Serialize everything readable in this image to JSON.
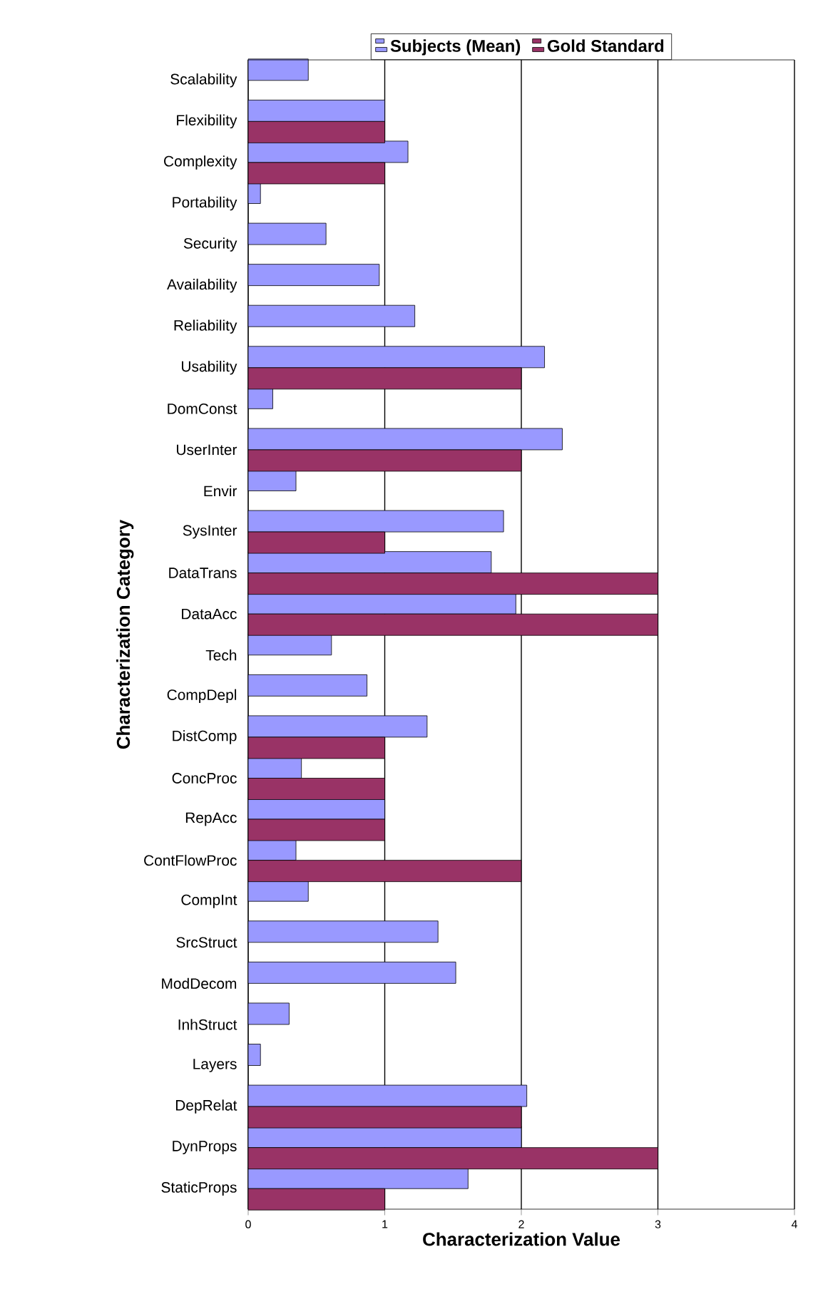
{
  "chart_data": {
    "type": "bar",
    "orientation": "horizontal",
    "xlabel": "Characterization Value",
    "ylabel": "Characterization Category",
    "categories": [
      "Scalability",
      "Flexibility",
      "Complexity",
      "Portability",
      "Security",
      "Availability",
      "Reliability",
      "Usability",
      "DomConst",
      "UserInter",
      "Envir",
      "SysInter",
      "DataTrans",
      "DataAcc",
      "Tech",
      "CompDepl",
      "DistComp",
      "ConcProc",
      "RepAcc",
      "ContFlowProc",
      "CompInt",
      "SrcStruct",
      "ModDecom",
      "InhStruct",
      "Layers",
      "DepRelat",
      "DynProps",
      "StaticProps"
    ],
    "series": [
      {
        "name": "Subjects (Mean)",
        "color": "#9999ff",
        "values": [
          0.44,
          1.0,
          1.17,
          0.09,
          0.57,
          0.96,
          1.22,
          2.17,
          0.18,
          2.3,
          0.35,
          1.87,
          1.78,
          1.96,
          0.61,
          0.87,
          1.31,
          0.39,
          1.0,
          0.35,
          0.44,
          1.39,
          1.52,
          0.3,
          0.09,
          2.04,
          2.0,
          1.61
        ]
      },
      {
        "name": "Gold Standard",
        "color": "#993366",
        "values": [
          null,
          1,
          1,
          null,
          null,
          null,
          null,
          2,
          null,
          2,
          null,
          1,
          3,
          3,
          null,
          null,
          1,
          1,
          1,
          2,
          null,
          null,
          null,
          null,
          null,
          2,
          3,
          1
        ]
      }
    ],
    "xlim": [
      0,
      4
    ],
    "xticks": [
      0,
      1,
      2,
      3,
      4
    ],
    "grid": "x",
    "legend": "top"
  }
}
